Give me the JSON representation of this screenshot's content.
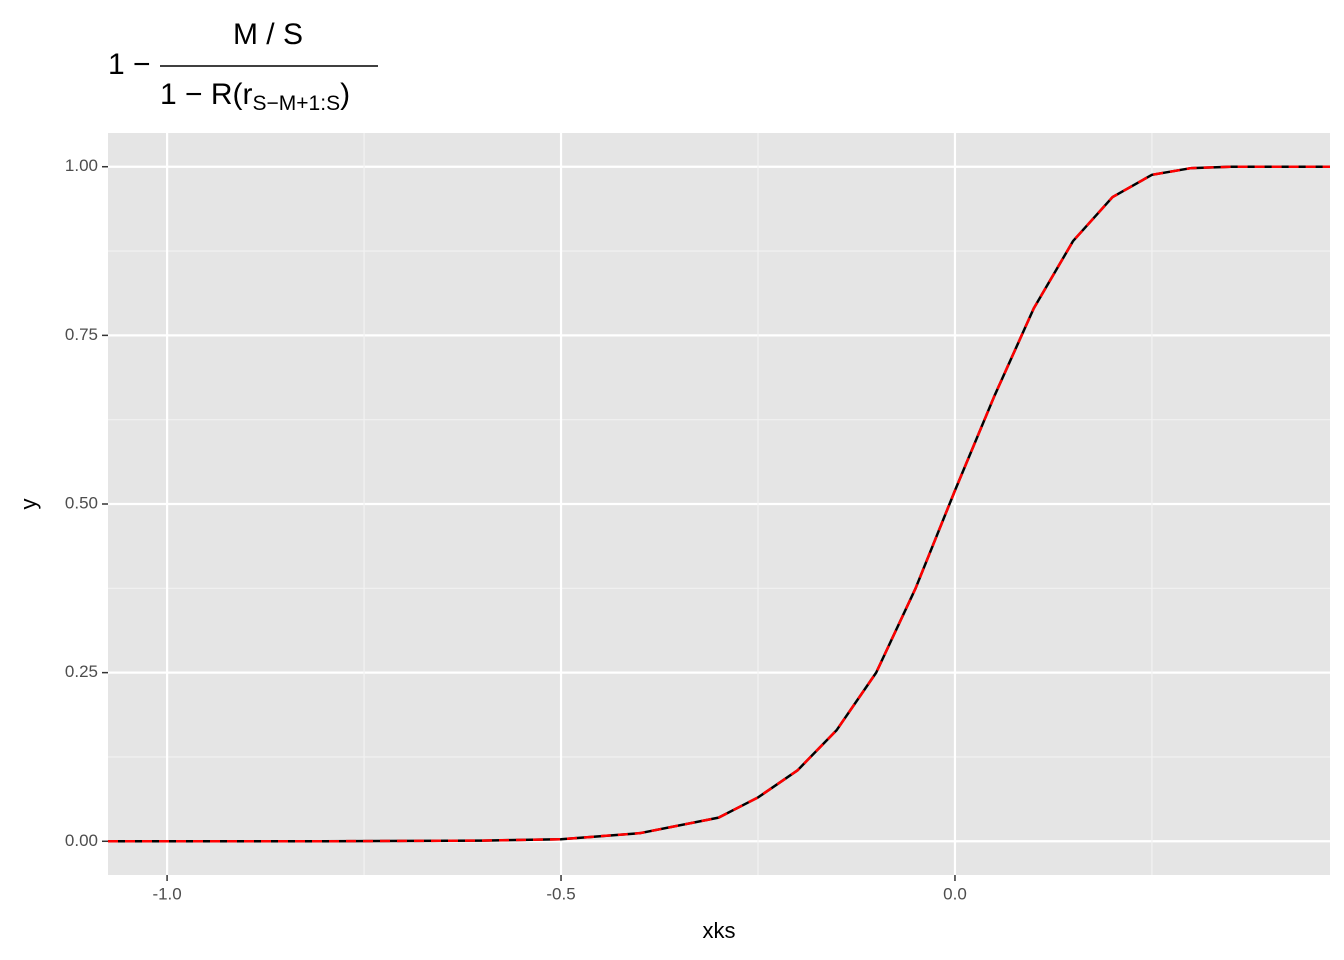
{
  "chart_data": {
    "type": "line",
    "title": {
      "lead": "1 −",
      "numerator": "M / S",
      "denominator": "1 − R(r",
      "denominator_sub": "S−M+1:S",
      "denominator_close": ")"
    },
    "x_label": "xks",
    "y_label": "y",
    "x": [
      -1.075,
      -0.8,
      -0.6,
      -0.5,
      -0.4,
      -0.3,
      -0.25,
      -0.2,
      -0.15,
      -0.1,
      -0.05,
      0,
      0.05,
      0.1,
      0.15,
      0.2,
      0.25,
      0.3,
      0.35,
      0.476
    ],
    "series": [
      {
        "color": "#000000",
        "values": [
          0,
          0,
          0.001,
          0.003,
          0.012,
          0.035,
          0.065,
          0.105,
          0.165,
          0.25,
          0.375,
          0.52,
          0.66,
          0.79,
          0.89,
          0.955,
          0.988,
          0.998,
          1,
          1
        ]
      },
      {
        "color": "#ff0000",
        "dashed": true,
        "values": [
          0,
          0,
          0.001,
          0.003,
          0.012,
          0.035,
          0.065,
          0.105,
          0.165,
          0.25,
          0.375,
          0.52,
          0.66,
          0.79,
          0.89,
          0.955,
          0.988,
          0.998,
          1,
          1
        ]
      }
    ],
    "xlim": [
      -1.075,
      0.476
    ],
    "ylim": [
      -0.05,
      1.05
    ],
    "xticks": [
      {
        "value": -1,
        "label": "-1.0"
      },
      -0.5,
      {
        "value": 0,
        "label": "0.0"
      }
    ],
    "yticks": [
      {
        "value": 0,
        "label": "0.00"
      },
      0.25,
      {
        "value": 0.5,
        "label": "0.50"
      },
      0.75,
      {
        "value": 1,
        "label": "1.00"
      }
    ],
    "grid": true
  }
}
